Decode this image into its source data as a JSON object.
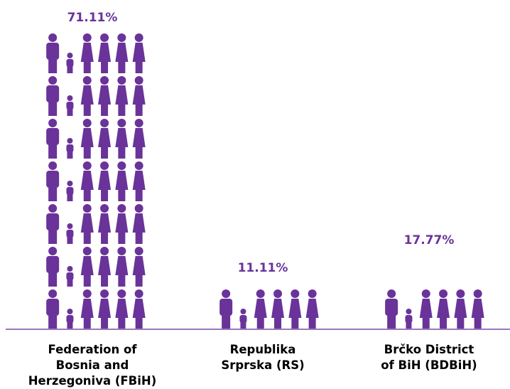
{
  "chart_data": {
    "type": "bar",
    "title": "",
    "xlabel": "",
    "ylabel": "",
    "ylim": [
      0,
      71.11
    ],
    "categories": [
      [
        "Federation of",
        "Bosnia and",
        "Herzegoniva (FBiH)"
      ],
      [
        "Republika",
        "Srprska (RS)"
      ],
      [
        "Brčko District",
        "of BiH (BDBiH)"
      ]
    ],
    "values": [
      71.11,
      11.11,
      17.77
    ],
    "value_labels": [
      "71.11%",
      "11.11%",
      "17.77%"
    ],
    "pictogram_pattern": [
      "man",
      "child",
      "woman",
      "woman",
      "woman",
      "woman"
    ],
    "grid": false,
    "legend": "none"
  },
  "colors": {
    "figure": "#6a3399",
    "label": "#6a3399",
    "baseline": "#7a4aa6",
    "category_text": "#000000"
  },
  "icon": "person-icon"
}
